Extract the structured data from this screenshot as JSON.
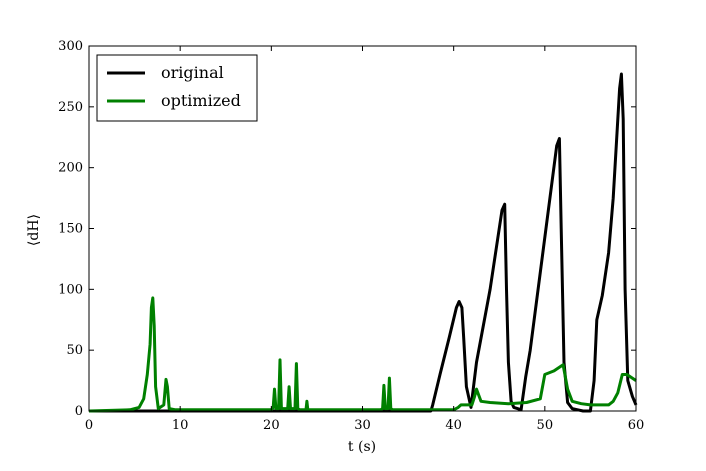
{
  "chart_data": {
    "type": "line",
    "xlabel": "t (s)",
    "ylabel": "⟨dH⟩",
    "xlim": [
      0,
      60
    ],
    "ylim": [
      0,
      300
    ],
    "xticks": [
      0,
      10,
      20,
      30,
      40,
      50,
      60
    ],
    "yticks": [
      0,
      50,
      100,
      150,
      200,
      250,
      300
    ],
    "grid": false,
    "legend_position": "top-left",
    "series": [
      {
        "name": "original",
        "color": "#000000",
        "x": [
          0,
          37.5,
          37.7,
          38.5,
          39.5,
          40.3,
          40.6,
          40.9,
          41.1,
          41.4,
          41.9,
          42.5,
          44,
          45.3,
          45.6,
          45.8,
          46.0,
          46.3,
          46.6,
          47.0,
          47.4,
          47.9,
          48.4,
          51.3,
          51.6,
          51.8,
          52.1,
          52.5,
          53.0,
          53.6,
          54.2,
          55.0,
          55.4,
          55.7,
          56.3,
          57,
          57.5,
          58.2,
          58.4,
          58.6,
          58.8,
          59.1,
          59.6,
          60
        ],
        "y": [
          0,
          0,
          5,
          30,
          60,
          85,
          90,
          85,
          60,
          20,
          3,
          40,
          100,
          165,
          170,
          100,
          40,
          8,
          3,
          2,
          1,
          28,
          50,
          218,
          224,
          150,
          40,
          7,
          2,
          1,
          0,
          0,
          25,
          75,
          95,
          130,
          175,
          265,
          277,
          240,
          100,
          25,
          12,
          5
        ]
      },
      {
        "name": "optimized",
        "color": "#008000",
        "x": [
          0,
          4.5,
          5.5,
          6.0,
          6.4,
          6.7,
          6.85,
          7.0,
          7.15,
          7.3,
          7.6,
          8.2,
          8.45,
          8.6,
          8.8,
          9.5,
          20,
          20.2,
          20.35,
          20.5,
          20.8,
          20.95,
          21.1,
          21.3,
          21.8,
          21.95,
          22.1,
          22.3,
          22.6,
          22.75,
          22.9,
          23.1,
          23.8,
          23.9,
          24.0,
          32,
          32.2,
          32.35,
          32.5,
          32.8,
          32.95,
          33.1,
          33.3,
          40,
          40.5,
          40.8,
          42,
          42.3,
          42.5,
          43,
          44,
          46,
          48,
          49.5,
          50,
          51,
          52,
          52.5,
          53,
          54,
          55,
          56,
          57,
          57.5,
          58,
          58.5,
          59,
          60
        ],
        "y": [
          0,
          1,
          3,
          10,
          30,
          55,
          85,
          93,
          70,
          20,
          2,
          5,
          26,
          20,
          2,
          1,
          1,
          3,
          18,
          2,
          2,
          42,
          2,
          2,
          2,
          20,
          2,
          2,
          2,
          39,
          2,
          1,
          1,
          8,
          1,
          1,
          2,
          21,
          2,
          2,
          27,
          2,
          1,
          1,
          3,
          5,
          5,
          12,
          18,
          8,
          7,
          6,
          7,
          10,
          30,
          33,
          38,
          18,
          8,
          6,
          5,
          5,
          5,
          8,
          15,
          30,
          30,
          25
        ]
      }
    ]
  }
}
